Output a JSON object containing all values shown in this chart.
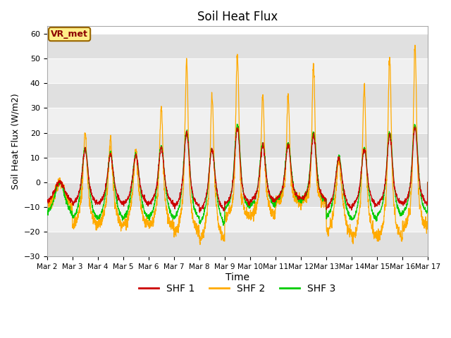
{
  "title": "Soil Heat Flux",
  "xlabel": "Time",
  "ylabel": "Soil Heat Flux (W/m2)",
  "ylim": [
    -30,
    63
  ],
  "yticks": [
    -30,
    -20,
    -10,
    0,
    10,
    20,
    30,
    40,
    50,
    60
  ],
  "color_shf1": "#cc0000",
  "color_shf2": "#ffaa00",
  "color_shf3": "#00cc00",
  "bg_color": "#ffffff",
  "band_light": "#f0f0f0",
  "band_dark": "#e0e0e0",
  "label_shf1": "SHF 1",
  "label_shf2": "SHF 2",
  "label_shf3": "SHF 3",
  "annotation": "VR_met",
  "annotation_box_color": "#ffee88",
  "annotation_box_edge": "#996600",
  "n_days": 15,
  "points_per_day": 144,
  "day_amps_shf2": [
    0,
    20,
    18,
    13,
    30,
    49,
    35,
    53,
    35,
    35,
    48,
    10,
    39,
    50,
    55
  ],
  "day_amps_shf13": [
    0,
    13,
    11,
    11,
    14,
    20,
    13,
    22,
    15,
    15,
    19,
    10,
    13,
    19,
    22
  ],
  "night_shf2": [
    -9,
    -17,
    -17,
    -17,
    -18,
    -20,
    -23,
    -14,
    -13,
    -8,
    -8,
    -20,
    -22,
    -22,
    -18
  ],
  "night_shf1": [
    -8,
    -9,
    -9,
    -9,
    -9,
    -10,
    -12,
    -9,
    -8,
    -7,
    -7,
    -11,
    -10,
    -9,
    -9
  ],
  "night_shf3": [
    -12,
    -14,
    -14,
    -14,
    -14,
    -14,
    -16,
    -10,
    -9,
    -7,
    -7,
    -14,
    -15,
    -13,
    -12
  ]
}
